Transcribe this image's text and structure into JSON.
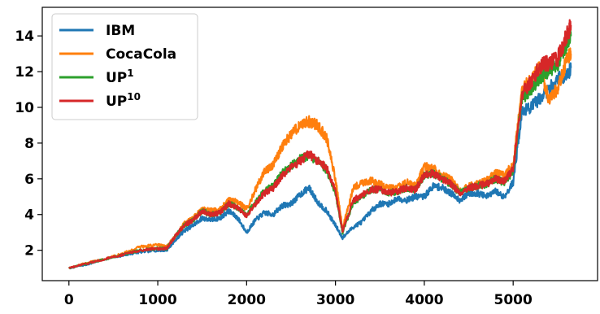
{
  "chart_data": {
    "type": "line",
    "title": "",
    "xlabel": "",
    "ylabel": "",
    "xlim": [
      -300,
      5950
    ],
    "ylim": [
      0.3,
      15.6
    ],
    "x_ticks": [
      0,
      1000,
      2000,
      3000,
      4000,
      5000
    ],
    "y_ticks": [
      2,
      4,
      6,
      8,
      10,
      12,
      14
    ],
    "x_tick_labels": [
      "0",
      "1000",
      "2000",
      "3000",
      "4000",
      "5000"
    ],
    "y_tick_labels": [
      "2",
      "4",
      "6",
      "8",
      "10",
      "12",
      "14"
    ],
    "grid": false,
    "legend": {
      "placement": "top-left",
      "entries": [
        {
          "name": "IBM",
          "sup": ""
        },
        {
          "name": "CocaCola",
          "sup": ""
        },
        {
          "name": "UP",
          "sup": "1"
        },
        {
          "name": "UP",
          "sup": "10"
        }
      ]
    },
    "series": [
      {
        "name": "IBM",
        "color": "#1f77b4",
        "x": [
          0,
          200,
          400,
          600,
          800,
          1000,
          1100,
          1200,
          1300,
          1400,
          1500,
          1600,
          1700,
          1800,
          1900,
          2000,
          2100,
          2200,
          2300,
          2400,
          2500,
          2600,
          2700,
          2800,
          2900,
          3000,
          3080,
          3200,
          3300,
          3400,
          3500,
          3600,
          3700,
          3800,
          3900,
          4000,
          4100,
          4200,
          4300,
          4400,
          4500,
          4600,
          4700,
          4800,
          4900,
          5000,
          5100,
          5200,
          5300,
          5400,
          5500,
          5600,
          5650
        ],
        "y": [
          1.0,
          1.2,
          1.5,
          1.7,
          1.9,
          2.0,
          2.0,
          2.6,
          3.1,
          3.4,
          3.8,
          3.7,
          3.8,
          4.2,
          3.8,
          3.0,
          3.7,
          4.1,
          4.0,
          4.5,
          4.6,
          5.1,
          5.5,
          4.7,
          4.2,
          3.4,
          2.7,
          3.3,
          3.6,
          4.2,
          4.6,
          4.6,
          4.9,
          4.8,
          5.0,
          5.0,
          5.6,
          5.5,
          5.2,
          4.8,
          5.2,
          5.2,
          5.0,
          5.3,
          5.0,
          5.8,
          9.8,
          10.0,
          10.5,
          11.0,
          11.6,
          11.8,
          12.2
        ]
      },
      {
        "name": "CocaCola",
        "color": "#ff7f0e",
        "x": [
          0,
          200,
          400,
          600,
          800,
          1000,
          1100,
          1200,
          1300,
          1400,
          1500,
          1600,
          1700,
          1800,
          1900,
          2000,
          2100,
          2200,
          2300,
          2400,
          2500,
          2600,
          2700,
          2800,
          2900,
          3000,
          3080,
          3200,
          3300,
          3400,
          3500,
          3600,
          3700,
          3800,
          3900,
          4000,
          4100,
          4200,
          4300,
          4400,
          4500,
          4600,
          4700,
          4800,
          4900,
          5000,
          5100,
          5200,
          5300,
          5400,
          5500,
          5600,
          5650
        ],
        "y": [
          1.0,
          1.3,
          1.5,
          1.8,
          2.2,
          2.3,
          2.2,
          2.8,
          3.5,
          3.8,
          4.3,
          4.2,
          4.3,
          4.8,
          4.7,
          4.3,
          5.4,
          6.4,
          6.8,
          7.8,
          8.5,
          9.0,
          9.2,
          9.0,
          8.3,
          6.0,
          3.2,
          5.5,
          5.8,
          5.9,
          5.7,
          5.5,
          5.5,
          5.8,
          5.6,
          6.7,
          6.6,
          6.2,
          6.0,
          5.3,
          5.6,
          5.7,
          5.9,
          6.3,
          6.2,
          6.8,
          11.0,
          11.5,
          12.2,
          10.5,
          11.0,
          12.6,
          13.0
        ]
      },
      {
        "name": "UP1",
        "color": "#2ca02c",
        "x": [
          0,
          200,
          400,
          600,
          800,
          1000,
          1100,
          1200,
          1300,
          1400,
          1500,
          1600,
          1700,
          1800,
          1900,
          2000,
          2100,
          2200,
          2300,
          2400,
          2500,
          2600,
          2700,
          2800,
          2900,
          3000,
          3080,
          3200,
          3300,
          3400,
          3500,
          3600,
          3700,
          3800,
          3900,
          4000,
          4100,
          4200,
          4300,
          4400,
          4500,
          4600,
          4700,
          4800,
          4900,
          5000,
          5100,
          5200,
          5300,
          5400,
          5500,
          5600,
          5650
        ],
        "y": [
          1.0,
          1.25,
          1.5,
          1.75,
          2.0,
          2.1,
          2.1,
          2.8,
          3.4,
          3.7,
          4.2,
          4.0,
          4.1,
          4.6,
          4.4,
          4.0,
          4.7,
          5.3,
          5.6,
          6.3,
          6.7,
          7.1,
          7.3,
          7.0,
          6.5,
          5.2,
          3.0,
          4.7,
          5.0,
          5.4,
          5.4,
          5.2,
          5.3,
          5.5,
          5.4,
          6.2,
          6.3,
          6.0,
          5.7,
          5.2,
          5.5,
          5.6,
          5.7,
          6.0,
          5.8,
          6.4,
          10.5,
          11.0,
          11.7,
          12.0,
          12.4,
          13.5,
          14.0
        ]
      },
      {
        "name": "UP10",
        "color": "#d62728",
        "x": [
          0,
          200,
          400,
          600,
          800,
          1000,
          1100,
          1200,
          1300,
          1400,
          1500,
          1600,
          1700,
          1800,
          1900,
          2000,
          2100,
          2200,
          2300,
          2400,
          2500,
          2600,
          2700,
          2800,
          2900,
          3000,
          3080,
          3200,
          3300,
          3400,
          3500,
          3600,
          3700,
          3800,
          3900,
          4000,
          4100,
          4200,
          4300,
          4400,
          4500,
          4600,
          4700,
          4800,
          4900,
          5000,
          5100,
          5200,
          5300,
          5400,
          5500,
          5600,
          5650
        ],
        "y": [
          1.0,
          1.25,
          1.5,
          1.75,
          2.0,
          2.1,
          2.1,
          2.8,
          3.4,
          3.7,
          4.2,
          4.0,
          4.1,
          4.6,
          4.4,
          3.9,
          4.6,
          5.2,
          5.5,
          6.2,
          6.6,
          7.0,
          7.4,
          7.0,
          6.6,
          5.3,
          3.1,
          4.8,
          5.1,
          5.4,
          5.4,
          5.2,
          5.3,
          5.5,
          5.4,
          6.2,
          6.3,
          6.0,
          5.7,
          5.2,
          5.5,
          5.6,
          5.7,
          6.0,
          5.9,
          6.5,
          10.8,
          11.4,
          12.3,
          12.5,
          12.7,
          14.0,
          14.6
        ]
      }
    ]
  }
}
